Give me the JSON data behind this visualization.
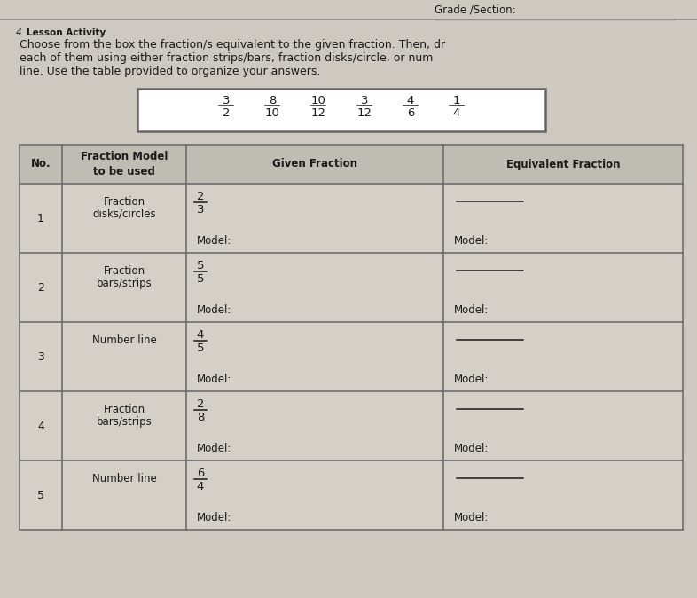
{
  "title_line1": "Lesson Activity",
  "instruction_lines": [
    "Choose from the box the fraction/s equivalent to the given fraction. Then, dr",
    "each of them using either fraction strips/bars, fraction disks/circle, or num",
    "line. Use the table provided to organize your answers."
  ],
  "fracs_top": [
    "3",
    "8",
    "10",
    "3",
    "4",
    "1"
  ],
  "fracs_bot": [
    "2",
    "10",
    "12",
    "12",
    "6",
    "4"
  ],
  "header_no": "No.",
  "header_model": "Fraction Model\nto be used",
  "header_given": "Given Fraction",
  "header_equiv": "Equivalent Fraction",
  "rows": [
    {
      "no": "1",
      "model": "Fraction\ndisks/circles",
      "given_num": "2",
      "given_den": "3"
    },
    {
      "no": "2",
      "model": "Fraction\nbars/strips",
      "given_num": "5",
      "given_den": "5"
    },
    {
      "no": "3",
      "model": "Number line",
      "given_num": "4",
      "given_den": "5"
    },
    {
      "no": "4",
      "model": "Fraction\nbars/strips",
      "given_num": "2",
      "given_den": "8"
    },
    {
      "no": "5",
      "model": "Number line",
      "given_num": "6",
      "given_den": "4"
    }
  ],
  "bg_color": "#cdc9c0",
  "white": "#ffffff",
  "header_row_bg": "#bfbcb4",
  "cell_bg": "#d4d0c8",
  "text_color": "#1a1a1a",
  "border_color": "#666666",
  "line_color": "#888888",
  "page_label": "Grade /Section:",
  "grade_line_color": "#888888",
  "num_prefix": "4."
}
